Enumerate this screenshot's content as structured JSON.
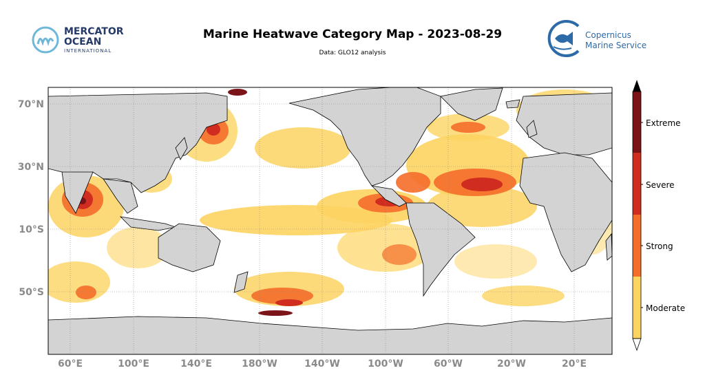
{
  "header": {
    "title": "Marine Heatwave Category Map - 2023-08-29",
    "subtitle": "Data: GLO12 analysis"
  },
  "logos": {
    "left": {
      "line1": "MERCATOR",
      "line2": "OCEAN",
      "line3": "INTERNATIONAL"
    },
    "right": {
      "line1": "Copernicus",
      "line2": "Marine Service"
    }
  },
  "map": {
    "lat_ticks": [
      "70°N",
      "30°N",
      "10°S",
      "50°S"
    ],
    "lon_ticks": [
      "60°E",
      "100°E",
      "140°E",
      "180°W",
      "140°W",
      "100°W",
      "60°W",
      "20°W",
      "20°E"
    ]
  },
  "legend": {
    "categories": [
      {
        "label": "Extreme",
        "color": "#7a1418"
      },
      {
        "label": "Severe",
        "color": "#d02c20"
      },
      {
        "label": "Strong",
        "color": "#f46d2a"
      },
      {
        "label": "Moderate",
        "color": "#fdd462"
      }
    ]
  },
  "colors": {
    "land": "#d3d3d3",
    "ocean": "#ffffff",
    "extreme": "#7a1418",
    "severe": "#d02c20",
    "strong": "#f46d2a",
    "moderate": "#fdd462"
  }
}
